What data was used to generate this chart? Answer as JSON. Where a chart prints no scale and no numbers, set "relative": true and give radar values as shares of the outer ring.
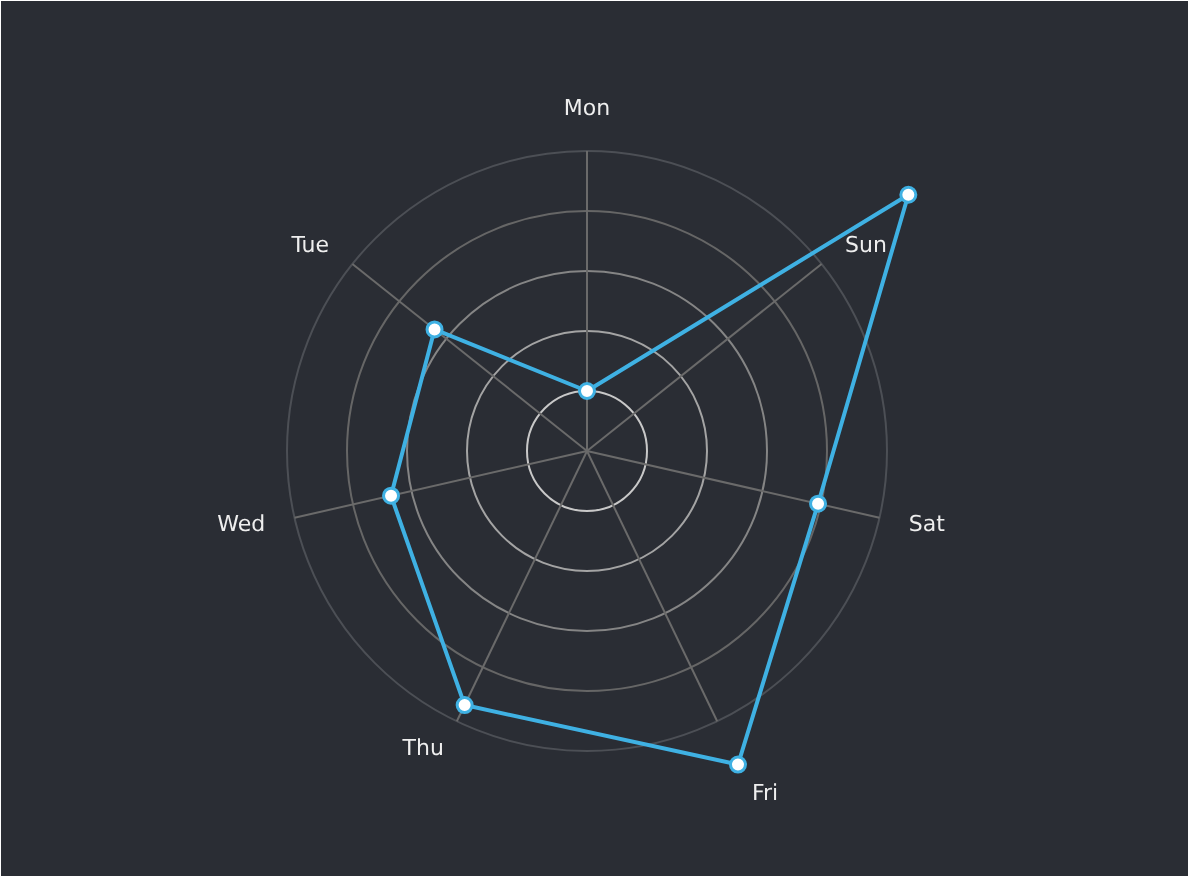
{
  "chart_data": {
    "type": "radar",
    "categories": [
      "Mon",
      "Sun",
      "Sat",
      "Fri",
      "Thu",
      "Wed",
      "Tue"
    ],
    "relative": true,
    "series": [
      {
        "color": "#3fb1e3",
        "values": [
          0.2,
          1.37,
          0.79,
          1.16,
          0.94,
          0.67,
          0.65
        ]
      }
    ],
    "grid": true,
    "marker": "circle"
  }
}
